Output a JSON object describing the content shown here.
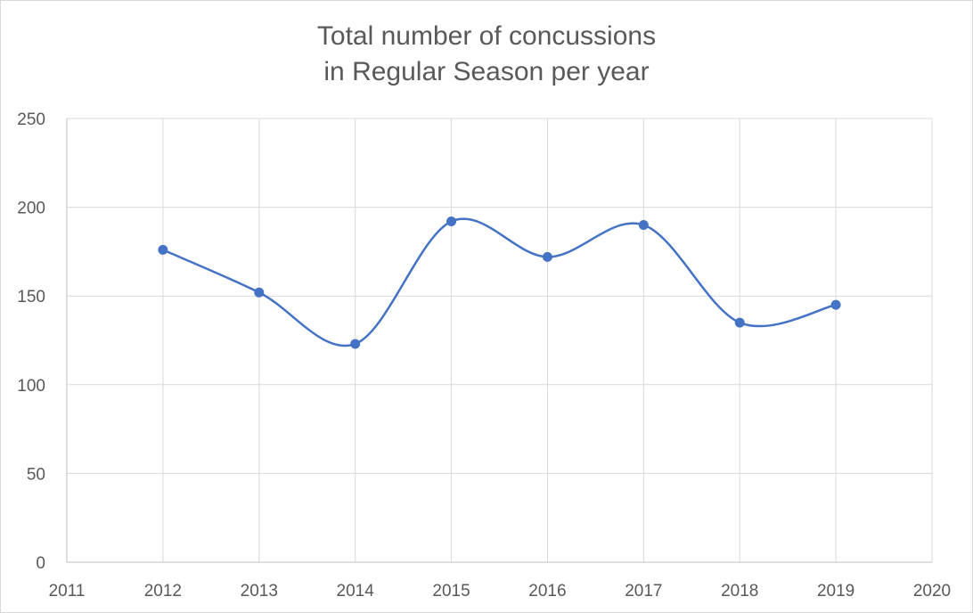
{
  "chart_data": {
    "type": "line",
    "title_line1": "Total number of concussions",
    "title_line2": "in Regular Season per year",
    "xlabel": "",
    "ylabel": "",
    "xlim": [
      2011,
      2020
    ],
    "ylim": [
      0,
      250
    ],
    "x_ticks": [
      2011,
      2012,
      2013,
      2014,
      2015,
      2016,
      2017,
      2018,
      2019,
      2020
    ],
    "y_ticks": [
      0,
      50,
      100,
      150,
      200,
      250
    ],
    "grid": true,
    "smooth": true,
    "line_color": "#4472C4",
    "series": [
      {
        "x": [
          2012,
          2013,
          2014,
          2015,
          2016,
          2017,
          2018,
          2019
        ],
        "values": [
          176,
          152,
          123,
          192,
          172,
          190,
          135,
          145
        ]
      }
    ]
  }
}
